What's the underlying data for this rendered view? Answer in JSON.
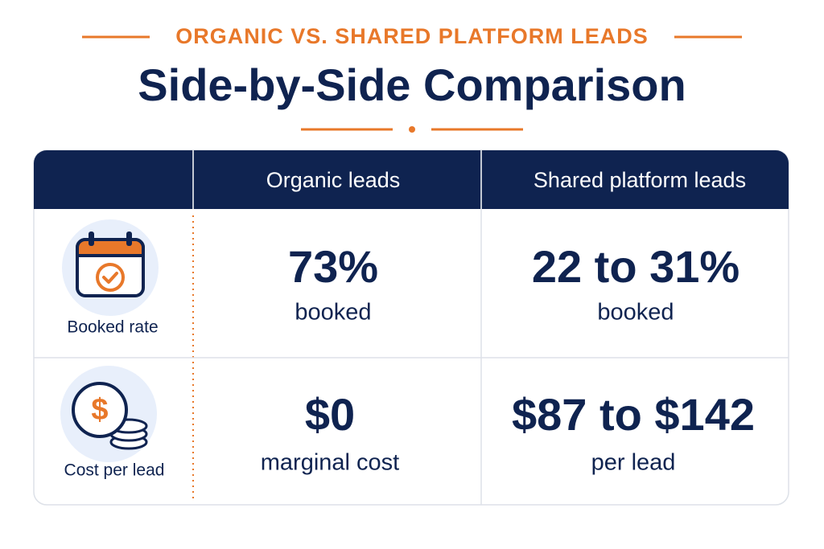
{
  "header": {
    "eyebrow": "ORGANIC VS. SHARED PLATFORM LEADS",
    "title": "Side-by-Side Comparison"
  },
  "table": {
    "columns": [
      "Organic leads",
      "Shared platform leads"
    ],
    "rows": [
      {
        "label": "Booked rate",
        "cells": [
          {
            "main": "73%",
            "sub": "booked"
          },
          {
            "main": "22 to 31%",
            "sub": "booked"
          }
        ]
      },
      {
        "label": "Cost per lead",
        "cells": [
          {
            "main": "$0",
            "sub": "marginal cost"
          },
          {
            "main": "$87 to $142",
            "sub": "per lead"
          }
        ]
      }
    ]
  }
}
